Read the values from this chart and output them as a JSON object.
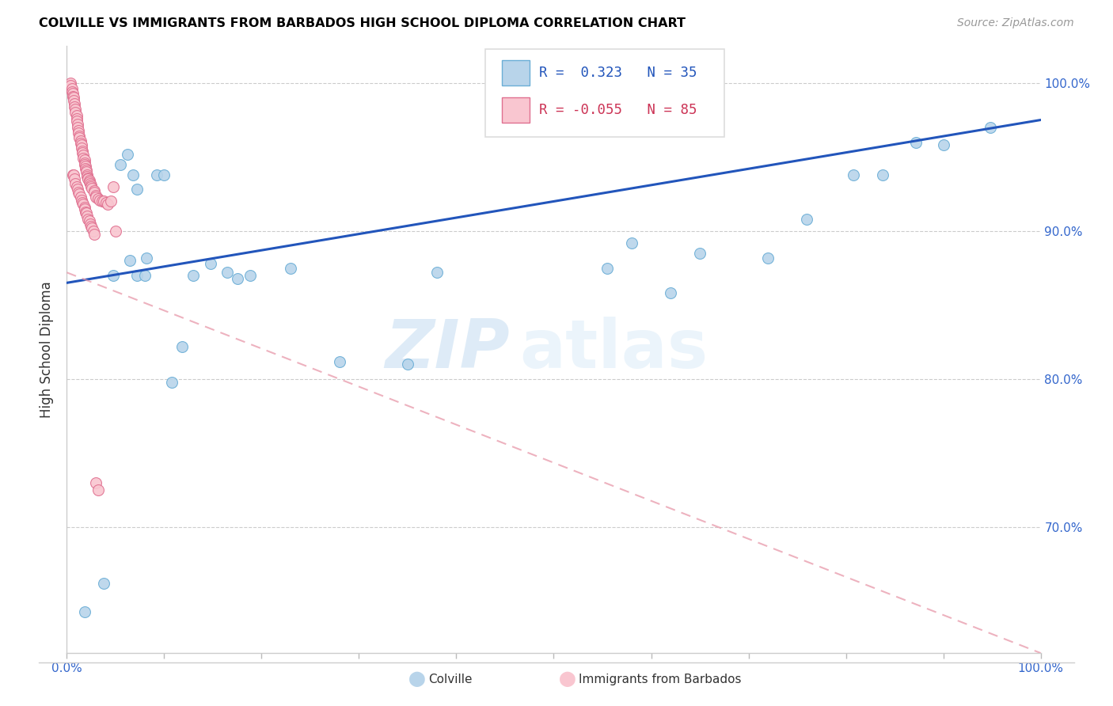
{
  "title": "COLVILLE VS IMMIGRANTS FROM BARBADOS HIGH SCHOOL DIPLOMA CORRELATION CHART",
  "source": "Source: ZipAtlas.com",
  "ylabel": "High School Diploma",
  "xmin": 0.0,
  "xmax": 1.0,
  "ymin": 0.615,
  "ymax": 1.025,
  "colville_color": "#b8d4ea",
  "colville_edge": "#6baed6",
  "barbados_color": "#f9c6d0",
  "barbados_edge": "#e07090",
  "blue_line_color": "#2255bb",
  "pink_line_color": "#e899aa",
  "legend_R_blue": "R =  0.323",
  "legend_N_blue": "N = 35",
  "legend_R_pink": "R = -0.055",
  "legend_N_pink": "N = 85",
  "legend_label_blue": "Colville",
  "legend_label_pink": "Immigrants from Barbados",
  "watermark_zip": "ZIP",
  "watermark_atlas": "atlas",
  "blue_line_x0": 0.0,
  "blue_line_y0": 0.865,
  "blue_line_x1": 1.0,
  "blue_line_y1": 0.975,
  "pink_line_x0": 0.0,
  "pink_line_y0": 0.872,
  "pink_line_x1": 1.0,
  "pink_line_y1": 0.615,
  "colville_x": [
    0.018,
    0.038,
    0.048,
    0.055,
    0.062,
    0.065,
    0.072,
    0.082,
    0.092,
    0.1,
    0.108,
    0.118,
    0.13,
    0.148,
    0.165,
    0.188,
    0.068,
    0.072,
    0.08,
    0.175,
    0.23,
    0.28,
    0.35,
    0.38,
    0.555,
    0.58,
    0.62,
    0.65,
    0.72,
    0.76,
    0.808,
    0.838,
    0.872,
    0.9,
    0.948
  ],
  "colville_y": [
    0.643,
    0.662,
    0.87,
    0.945,
    0.952,
    0.88,
    0.87,
    0.882,
    0.938,
    0.938,
    0.798,
    0.822,
    0.87,
    0.878,
    0.872,
    0.87,
    0.938,
    0.928,
    0.87,
    0.868,
    0.875,
    0.812,
    0.81,
    0.872,
    0.875,
    0.892,
    0.858,
    0.885,
    0.882,
    0.908,
    0.938,
    0.938,
    0.96,
    0.958,
    0.97
  ],
  "barbados_x": [
    0.004,
    0.004,
    0.005,
    0.005,
    0.006,
    0.006,
    0.007,
    0.007,
    0.008,
    0.008,
    0.009,
    0.009,
    0.01,
    0.01,
    0.01,
    0.011,
    0.011,
    0.012,
    0.012,
    0.013,
    0.013,
    0.014,
    0.014,
    0.015,
    0.015,
    0.016,
    0.016,
    0.017,
    0.017,
    0.018,
    0.018,
    0.018,
    0.019,
    0.019,
    0.02,
    0.02,
    0.021,
    0.021,
    0.022,
    0.022,
    0.023,
    0.023,
    0.024,
    0.025,
    0.025,
    0.026,
    0.028,
    0.028,
    0.03,
    0.03,
    0.032,
    0.034,
    0.036,
    0.038,
    0.04,
    0.042,
    0.045,
    0.048,
    0.05,
    0.03,
    0.032,
    0.006,
    0.007,
    0.008,
    0.009,
    0.01,
    0.011,
    0.012,
    0.013,
    0.014,
    0.015,
    0.016,
    0.017,
    0.018,
    0.018,
    0.019,
    0.02,
    0.021,
    0.022,
    0.023,
    0.024,
    0.025,
    0.026,
    0.027,
    0.028
  ],
  "barbados_y": [
    1.0,
    0.998,
    0.996,
    0.994,
    0.993,
    0.991,
    0.99,
    0.988,
    0.986,
    0.984,
    0.982,
    0.98,
    0.978,
    0.976,
    0.974,
    0.972,
    0.97,
    0.968,
    0.966,
    0.964,
    0.963,
    0.961,
    0.959,
    0.958,
    0.956,
    0.954,
    0.953,
    0.951,
    0.949,
    0.948,
    0.946,
    0.945,
    0.944,
    0.942,
    0.941,
    0.94,
    0.938,
    0.937,
    0.936,
    0.935,
    0.934,
    0.933,
    0.932,
    0.931,
    0.93,
    0.929,
    0.927,
    0.926,
    0.924,
    0.923,
    0.922,
    0.921,
    0.92,
    0.92,
    0.919,
    0.918,
    0.92,
    0.93,
    0.9,
    0.73,
    0.725,
    0.938,
    0.938,
    0.935,
    0.932,
    0.93,
    0.928,
    0.926,
    0.925,
    0.923,
    0.921,
    0.919,
    0.918,
    0.916,
    0.915,
    0.913,
    0.912,
    0.91,
    0.908,
    0.907,
    0.905,
    0.903,
    0.902,
    0.9,
    0.898
  ]
}
